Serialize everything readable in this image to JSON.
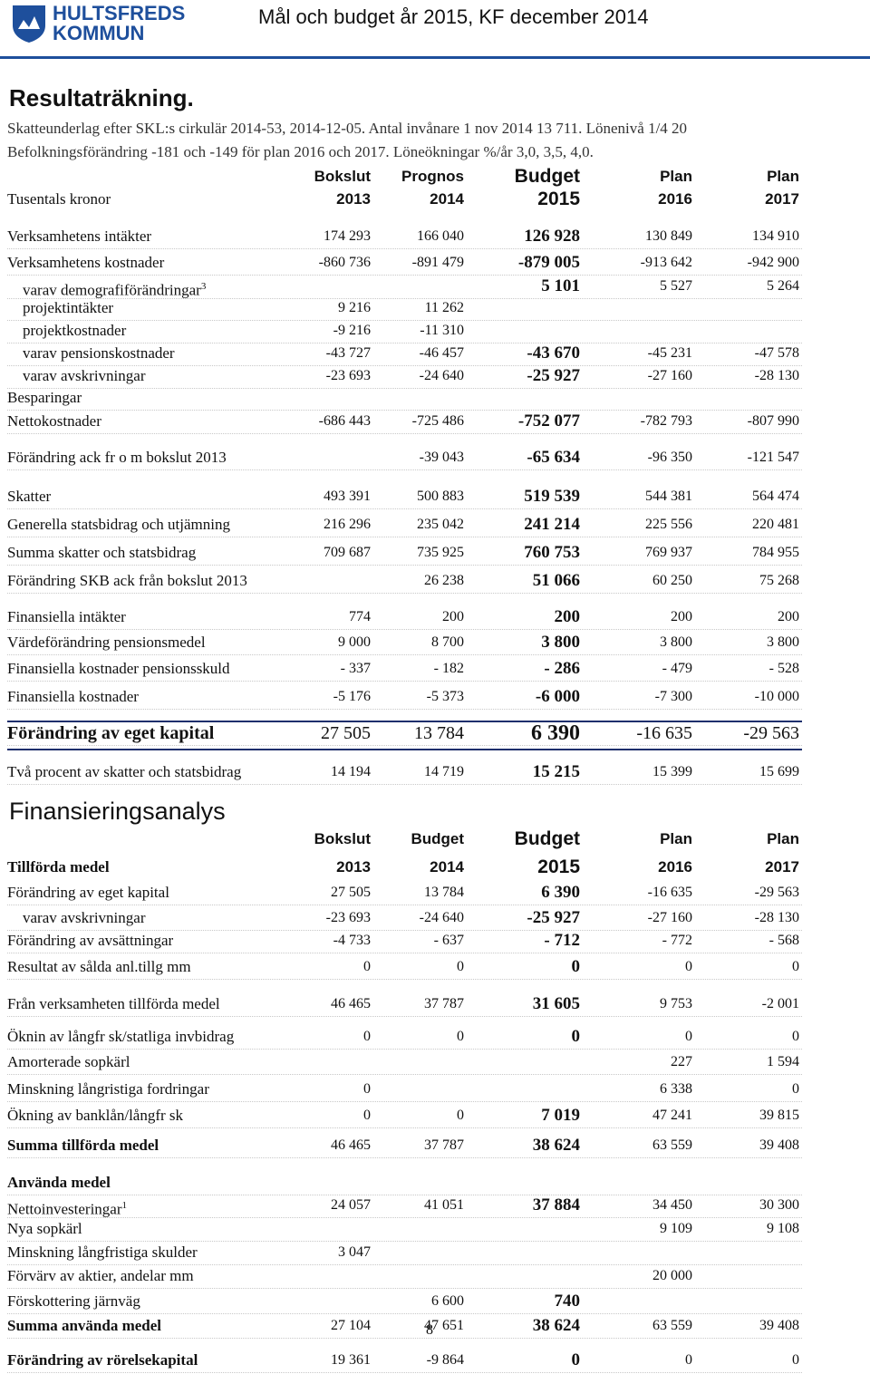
{
  "header": {
    "logo_line1": "HULTSFREDS",
    "logo_line2": "KOMMUN",
    "title": "Mål och budget år 2015, KF december 2014"
  },
  "result": {
    "title": "Resultaträkning.",
    "intro": [
      "Skatteunderlag efter SKL:s cirkulär 2014-53, 2014-12-05. Antal invånare 1 nov 2014 13 711. Lönenivå 1/4 20",
      "Befolkningsförändring  -181 och -149 för plan 2016 och 2017. Löneökningar %/år 3,0, 3,5, 4,0."
    ],
    "unit_label": "Tusentals kronor",
    "columns": [
      {
        "top": "Bokslut",
        "year": "2013"
      },
      {
        "top": "Prognos",
        "year": "2014"
      },
      {
        "top": "Budget",
        "year": "2015"
      },
      {
        "top": "Plan",
        "year": "2016"
      },
      {
        "top": "Plan",
        "year": "2017"
      }
    ],
    "rows": [
      {
        "label": "Verksamhetens intäkter",
        "cells": [
          "174 293",
          "166 040",
          "126 928",
          "130 849",
          "134 910"
        ]
      },
      {
        "label": "Verksamhetens kostnader",
        "cells": [
          "-860 736",
          "-891 479",
          "-879 005",
          "-913 642",
          "-942 900"
        ]
      },
      {
        "label": "varav demografiförändringar",
        "sup": "3",
        "cells": [
          null,
          null,
          "5 101",
          "5 527",
          "5 264"
        ]
      },
      {
        "label": "projektintäkter",
        "cells": [
          "9 216",
          "11 262",
          null,
          null,
          null
        ]
      },
      {
        "label": "projektkostnader",
        "cells": [
          "-9 216",
          "-11 310",
          null,
          null,
          null
        ]
      },
      {
        "label": "varav pensionskostnader",
        "cells": [
          "-43 727",
          "-46 457",
          "-43 670",
          "-45 231",
          "-47 578"
        ]
      },
      {
        "label": "varav avskrivningar",
        "cells": [
          "-23 693",
          "-24 640",
          "-25 927",
          "-27 160",
          "-28 130"
        ]
      },
      {
        "label": "Besparingar",
        "cells": [
          null,
          null,
          null,
          null,
          null
        ]
      },
      {
        "label": "Nettokostnader",
        "cells": [
          "-686 443",
          "-725 486",
          "-752 077",
          "-782 793",
          "-807 990"
        ]
      },
      {
        "label": "Förändring ack fr o m bokslut 2013",
        "cells": [
          null,
          "-39 043",
          "-65 634",
          "-96 350",
          "-121 547"
        ]
      },
      {
        "label": "Skatter",
        "cells": [
          "493 391",
          "500 883",
          "519 539",
          "544 381",
          "564 474"
        ]
      },
      {
        "label": "Generella statsbidrag och utjämning",
        "cells": [
          "216 296",
          "235 042",
          "241 214",
          "225 556",
          "220 481"
        ]
      },
      {
        "label": "Summa skatter och statsbidrag",
        "cells": [
          "709 687",
          "735 925",
          "760 753",
          "769 937",
          "784 955"
        ]
      },
      {
        "label": "Förändring SKB ack från bokslut 2013",
        "cells": [
          null,
          "26 238",
          "51 066",
          "60 250",
          "75 268"
        ]
      },
      {
        "label": "Finansiella intäkter",
        "cells": [
          "774",
          "200",
          "200",
          "200",
          "200"
        ]
      },
      {
        "label": "Värdeförändring pensionsmedel",
        "cells": [
          "9 000",
          "8 700",
          "3 800",
          "3 800",
          "3 800"
        ]
      },
      {
        "label": "Finansiella kostnader pensionsskuld",
        "cells": [
          "- 337",
          "- 182",
          "- 286",
          "- 479",
          "- 528"
        ]
      },
      {
        "label": "Finansiella kostnader",
        "cells": [
          "-5 176",
          "-5 373",
          "-6 000",
          "-7 300",
          "-10 000"
        ]
      },
      {
        "label": "Förändring av eget kapital",
        "cells": [
          "27 505",
          "13 784",
          "6 390",
          "-16 635",
          "-29 563"
        ]
      },
      {
        "label": "Två procent av skatter och statsbidrag",
        "cells": [
          "14 194",
          "14 719",
          "15 215",
          "15 399",
          "15 699"
        ]
      }
    ]
  },
  "finance": {
    "title": "Finansieringsanalys",
    "unit_label": "Tillförda medel",
    "columns": [
      {
        "top": "Bokslut",
        "year": "2013"
      },
      {
        "top": "Budget",
        "year": "2014"
      },
      {
        "top": "Budget",
        "year": "2015"
      },
      {
        "top": "Plan",
        "year": "2016"
      },
      {
        "top": "Plan",
        "year": "2017"
      }
    ],
    "rows": [
      {
        "label": "Förändring av eget kapital",
        "cells": [
          "27 505",
          "13 784",
          "6 390",
          "-16 635",
          "-29 563"
        ]
      },
      {
        "label": "varav avskrivningar",
        "cells": [
          "-23 693",
          "-24 640",
          "-25 927",
          "-27 160",
          "-28 130"
        ]
      },
      {
        "label": "Förändring av avsättningar",
        "cells": [
          "-4 733",
          "- 637",
          "- 712",
          "- 772",
          "- 568"
        ]
      },
      {
        "label": "Resultat av sålda anl.tillg mm",
        "cells": [
          "0",
          "0",
          "0",
          "0",
          "0"
        ]
      },
      {
        "label": "Från verksamheten tillförda medel",
        "cells": [
          "46 465",
          "37 787",
          "31 605",
          "9 753",
          "-2 001"
        ]
      },
      {
        "label": "Öknin av långfr sk/statliga invbidrag",
        "cells": [
          "0",
          "0",
          "0",
          "0",
          "0"
        ]
      },
      {
        "label": "Amorterade sopkärl",
        "cells": [
          null,
          null,
          null,
          "227",
          "1 594"
        ]
      },
      {
        "label": "Minskning långristiga fordringar",
        "cells": [
          "0",
          null,
          null,
          "6 338",
          "0"
        ]
      },
      {
        "label": "Ökning av banklån/långfr sk",
        "cells": [
          "0",
          "0",
          "7 019",
          "47 241",
          "39 815"
        ]
      },
      {
        "label": "Summa tillförda medel",
        "cells": [
          "46 465",
          "37 787",
          "38 624",
          "63 559",
          "39 408"
        ]
      },
      {
        "label": "Använda medel",
        "cells": [
          null,
          null,
          null,
          null,
          null
        ]
      },
      {
        "label": "Nettoinvesteringar",
        "sup": "1",
        "cells": [
          "24 057",
          "41 051",
          "37 884",
          "34 450",
          "30 300"
        ]
      },
      {
        "label": "Nya sopkärl",
        "cells": [
          null,
          null,
          null,
          "9 109",
          "9 108"
        ]
      },
      {
        "label": "Minskning långfristiga skulder",
        "cells": [
          "3 047",
          null,
          null,
          null,
          null
        ]
      },
      {
        "label": "Förvärv av aktier, andelar mm",
        "cells": [
          null,
          null,
          null,
          "20 000",
          null
        ]
      },
      {
        "label": "Förskottering järnväg",
        "cells": [
          null,
          "6 600",
          "740",
          null,
          null
        ]
      },
      {
        "label": "Summa använda medel",
        "cells": [
          "27 104",
          "47 651",
          "38 624",
          "63 559",
          "39 408"
        ]
      },
      {
        "label": "Förändring av rörelsekapital",
        "cells": [
          "19 361",
          "-9 864",
          "0",
          "0",
          "0"
        ]
      }
    ]
  },
  "page_number": "8"
}
